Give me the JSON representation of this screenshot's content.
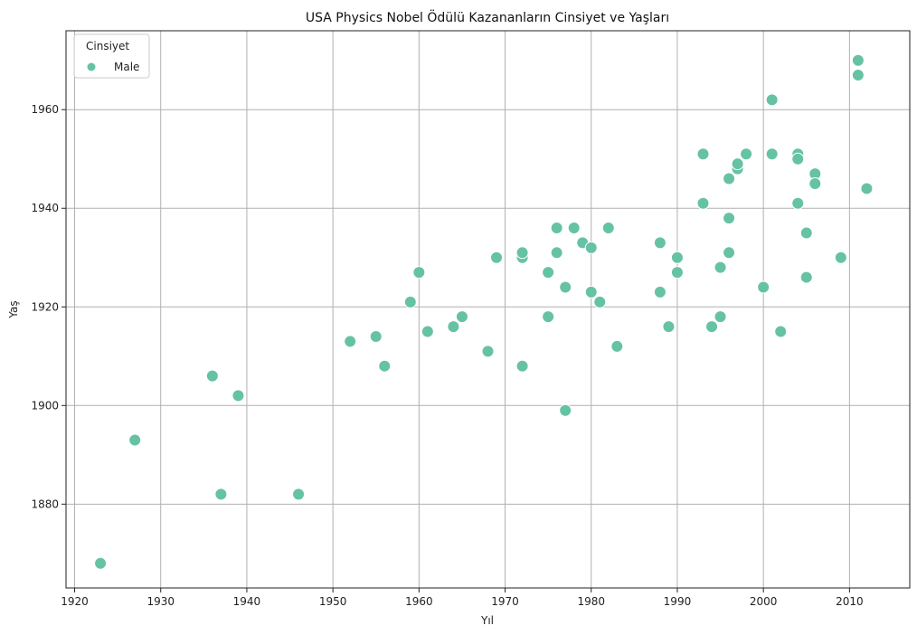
{
  "chart_data": {
    "type": "scatter",
    "title": "USA Physics Nobel Ödülü Kazananların Cinsiyet ve Yaşları",
    "xlabel": "Yıl",
    "ylabel": "Yaş",
    "xlim": [
      1919,
      2017
    ],
    "ylim": [
      1863,
      1976
    ],
    "xticks": [
      1920,
      1930,
      1940,
      1950,
      1960,
      1970,
      1980,
      1990,
      2000,
      2010
    ],
    "yticks": [
      1880,
      1900,
      1920,
      1940,
      1960
    ],
    "grid": true,
    "legend": {
      "title": "Cinsiyet",
      "position": "top-left"
    },
    "series": [
      {
        "name": "Male",
        "color": "#66c2a5",
        "points": [
          [
            1923,
            1868
          ],
          [
            1927,
            1893
          ],
          [
            1936,
            1906
          ],
          [
            1937,
            1882
          ],
          [
            1939,
            1902
          ],
          [
            1946,
            1882
          ],
          [
            1952,
            1913
          ],
          [
            1955,
            1914
          ],
          [
            1956,
            1908
          ],
          [
            1959,
            1921
          ],
          [
            1960,
            1927
          ],
          [
            1961,
            1915
          ],
          [
            1964,
            1916
          ],
          [
            1965,
            1918
          ],
          [
            1968,
            1911
          ],
          [
            1969,
            1930
          ],
          [
            1972,
            1930
          ],
          [
            1972,
            1931
          ],
          [
            1972,
            1908
          ],
          [
            1975,
            1927
          ],
          [
            1975,
            1918
          ],
          [
            1976,
            1936
          ],
          [
            1976,
            1931
          ],
          [
            1977,
            1924
          ],
          [
            1977,
            1899
          ],
          [
            1978,
            1936
          ],
          [
            1979,
            1933
          ],
          [
            1979,
            1933
          ],
          [
            1980,
            1932
          ],
          [
            1980,
            1923
          ],
          [
            1981,
            1921
          ],
          [
            1982,
            1936
          ],
          [
            1983,
            1912
          ],
          [
            1988,
            1933
          ],
          [
            1988,
            1923
          ],
          [
            1989,
            1916
          ],
          [
            1990,
            1930
          ],
          [
            1990,
            1927
          ],
          [
            1993,
            1951
          ],
          [
            1993,
            1941
          ],
          [
            1994,
            1916
          ],
          [
            1995,
            1928
          ],
          [
            1995,
            1918
          ],
          [
            1996,
            1946
          ],
          [
            1996,
            1938
          ],
          [
            1996,
            1931
          ],
          [
            1997,
            1948
          ],
          [
            1997,
            1949
          ],
          [
            1998,
            1951
          ],
          [
            2000,
            1924
          ],
          [
            2001,
            1962
          ],
          [
            2001,
            1951
          ],
          [
            2002,
            1915
          ],
          [
            2004,
            1951
          ],
          [
            2004,
            1950
          ],
          [
            2004,
            1941
          ],
          [
            2005,
            1935
          ],
          [
            2005,
            1926
          ],
          [
            2006,
            1947
          ],
          [
            2006,
            1945
          ],
          [
            2009,
            1930
          ],
          [
            2011,
            1970
          ],
          [
            2011,
            1967
          ],
          [
            2012,
            1944
          ]
        ]
      }
    ]
  }
}
